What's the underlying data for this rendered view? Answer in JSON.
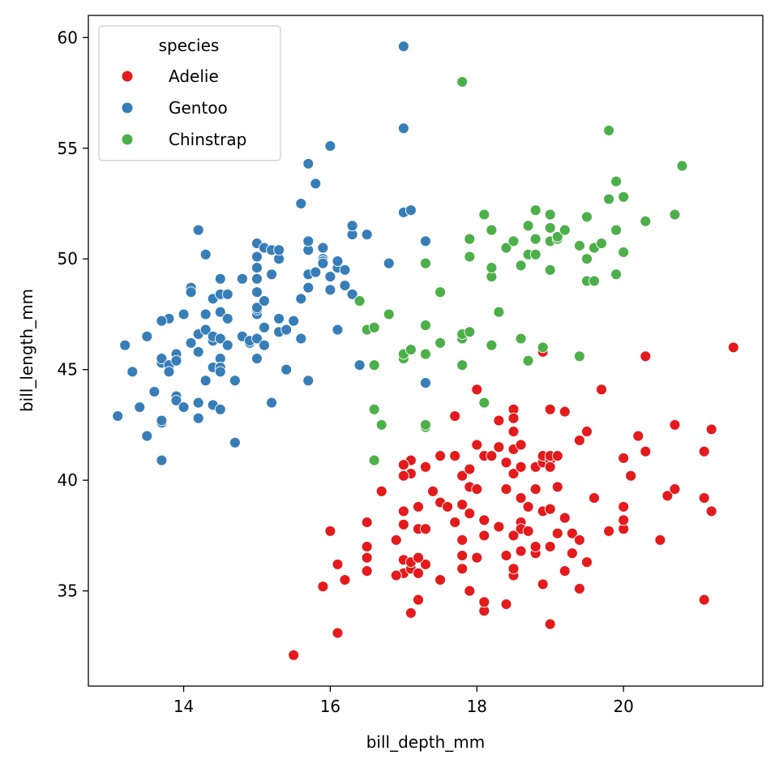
{
  "chart_data": {
    "type": "scatter",
    "xlabel": "bill_depth_mm",
    "ylabel": "bill_length_mm",
    "xlim": [
      12.7,
      21.9
    ],
    "ylim": [
      30.7,
      61.0
    ],
    "xticks": [
      14,
      16,
      18,
      20
    ],
    "yticks": [
      35,
      40,
      45,
      50,
      55,
      60
    ],
    "grid": false,
    "legend": {
      "title": "species",
      "placement": "top-left"
    },
    "series": [
      {
        "name": "Adelie",
        "color": "#e41a1c",
        "points": [
          [
            15.5,
            32.1
          ],
          [
            16.1,
            33.1
          ],
          [
            17.2,
            34.6
          ],
          [
            17.1,
            34.0
          ],
          [
            18.1,
            34.1
          ],
          [
            18.1,
            34.5
          ],
          [
            18.4,
            34.4
          ],
          [
            19.0,
            33.5
          ],
          [
            19.4,
            35.1
          ],
          [
            18.9,
            35.3
          ],
          [
            15.9,
            35.2
          ],
          [
            16.2,
            35.5
          ],
          [
            16.1,
            36.2
          ],
          [
            16.5,
            35.9
          ],
          [
            16.5,
            36.5
          ],
          [
            16.5,
            37.0
          ],
          [
            16.5,
            38.1
          ],
          [
            16.0,
            37.7
          ],
          [
            16.7,
            39.5
          ],
          [
            17.1,
            40.9
          ],
          [
            17.0,
            40.7
          ],
          [
            17.3,
            40.6
          ],
          [
            17.1,
            40.3
          ],
          [
            17.0,
            40.2
          ],
          [
            16.9,
            37.3
          ],
          [
            17.0,
            36.4
          ],
          [
            17.0,
            35.8
          ],
          [
            17.1,
            36.0
          ],
          [
            16.9,
            35.7
          ],
          [
            17.2,
            35.8
          ],
          [
            17.3,
            36.2
          ],
          [
            17.1,
            36.3
          ],
          [
            17.2,
            36.5
          ],
          [
            17.2,
            37.8
          ],
          [
            17.0,
            38.0
          ],
          [
            17.3,
            37.8
          ],
          [
            17.0,
            38.6
          ],
          [
            17.2,
            38.8
          ],
          [
            17.4,
            39.5
          ],
          [
            17.5,
            39.0
          ],
          [
            17.5,
            41.1
          ],
          [
            17.7,
            41.1
          ],
          [
            17.7,
            42.9
          ],
          [
            17.6,
            38.8
          ],
          [
            17.7,
            38.1
          ],
          [
            17.5,
            35.5
          ],
          [
            17.8,
            36.0
          ],
          [
            17.8,
            36.6
          ],
          [
            17.8,
            37.3
          ],
          [
            17.9,
            38.5
          ],
          [
            17.8,
            38.9
          ],
          [
            17.9,
            39.7
          ],
          [
            17.8,
            40.2
          ],
          [
            17.9,
            40.5
          ],
          [
            18.0,
            41.6
          ],
          [
            18.0,
            44.1
          ],
          [
            18.1,
            41.1
          ],
          [
            18.0,
            39.6
          ],
          [
            18.1,
            38.2
          ],
          [
            18.1,
            37.5
          ],
          [
            18.0,
            36.5
          ],
          [
            17.9,
            35.0
          ],
          [
            18.2,
            41.1
          ],
          [
            18.3,
            41.5
          ],
          [
            18.3,
            42.7
          ],
          [
            18.4,
            40.8
          ],
          [
            18.4,
            39.6
          ],
          [
            18.3,
            37.9
          ],
          [
            18.4,
            36.6
          ],
          [
            18.5,
            35.7
          ],
          [
            18.5,
            36.0
          ],
          [
            18.6,
            38.1
          ],
          [
            18.6,
            37.8
          ],
          [
            18.5,
            37.5
          ],
          [
            18.6,
            39.2
          ],
          [
            18.5,
            40.3
          ],
          [
            18.5,
            41.4
          ],
          [
            18.6,
            41.6
          ],
          [
            18.6,
            40.6
          ],
          [
            18.5,
            42.2
          ],
          [
            18.5,
            43.2
          ],
          [
            18.5,
            42.8
          ],
          [
            18.6,
            36.8
          ],
          [
            18.7,
            38.8
          ],
          [
            18.8,
            36.7
          ],
          [
            18.8,
            37.0
          ],
          [
            18.7,
            37.7
          ],
          [
            18.9,
            38.6
          ],
          [
            18.8,
            39.6
          ],
          [
            18.8,
            40.6
          ],
          [
            18.9,
            40.8
          ],
          [
            18.9,
            41.1
          ],
          [
            19.0,
            40.9
          ],
          [
            19.0,
            41.1
          ],
          [
            19.1,
            41.1
          ],
          [
            19.0,
            40.6
          ],
          [
            19.1,
            39.7
          ],
          [
            19.0,
            38.7
          ],
          [
            19.0,
            37.0
          ],
          [
            19.1,
            37.6
          ],
          [
            19.2,
            38.3
          ],
          [
            19.3,
            37.6
          ],
          [
            19.2,
            35.9
          ],
          [
            19.5,
            36.3
          ],
          [
            19.3,
            36.7
          ],
          [
            19.4,
            37.3
          ],
          [
            19.6,
            39.2
          ],
          [
            19.0,
            43.2
          ],
          [
            19.2,
            43.1
          ],
          [
            19.4,
            41.8
          ],
          [
            19.5,
            42.2
          ],
          [
            19.7,
            44.1
          ],
          [
            19.8,
            37.7
          ],
          [
            20.0,
            37.8
          ],
          [
            20.0,
            38.2
          ],
          [
            20.0,
            38.8
          ],
          [
            20.1,
            40.2
          ],
          [
            20.0,
            41.0
          ],
          [
            20.2,
            42.0
          ],
          [
            20.3,
            41.3
          ],
          [
            20.5,
            37.3
          ],
          [
            20.6,
            39.3
          ],
          [
            20.7,
            39.6
          ],
          [
            20.7,
            42.5
          ],
          [
            21.1,
            41.3
          ],
          [
            21.2,
            42.3
          ],
          [
            21.1,
            39.2
          ],
          [
            21.2,
            38.6
          ],
          [
            21.1,
            34.6
          ],
          [
            21.5,
            46.0
          ],
          [
            20.3,
            45.6
          ],
          [
            18.9,
            45.8
          ]
        ]
      },
      {
        "name": "Gentoo",
        "color": "#377eb8",
        "points": [
          [
            13.1,
            42.9
          ],
          [
            13.2,
            46.1
          ],
          [
            13.3,
            44.9
          ],
          [
            13.4,
            43.3
          ],
          [
            13.5,
            42.0
          ],
          [
            13.5,
            46.5
          ],
          [
            13.6,
            44.0
          ],
          [
            13.7,
            40.9
          ],
          [
            13.7,
            42.6
          ],
          [
            13.7,
            42.7
          ],
          [
            13.7,
            45.3
          ],
          [
            13.7,
            45.5
          ],
          [
            13.8,
            45.2
          ],
          [
            13.8,
            47.3
          ],
          [
            13.7,
            47.2
          ],
          [
            13.8,
            44.9
          ],
          [
            13.9,
            45.7
          ],
          [
            13.9,
            45.4
          ],
          [
            13.9,
            43.8
          ],
          [
            13.9,
            43.6
          ],
          [
            14.0,
            43.3
          ],
          [
            14.0,
            47.5
          ],
          [
            14.1,
            48.7
          ],
          [
            14.1,
            48.5
          ],
          [
            14.1,
            46.2
          ],
          [
            14.2,
            45.8
          ],
          [
            14.2,
            46.6
          ],
          [
            14.2,
            43.5
          ],
          [
            14.2,
            42.8
          ],
          [
            14.2,
            51.3
          ],
          [
            14.3,
            50.2
          ],
          [
            14.3,
            46.8
          ],
          [
            14.3,
            44.5
          ],
          [
            14.4,
            43.4
          ],
          [
            14.4,
            45.1
          ],
          [
            14.4,
            46.3
          ],
          [
            14.4,
            46.5
          ],
          [
            14.3,
            47.5
          ],
          [
            14.4,
            48.2
          ],
          [
            14.5,
            48.4
          ],
          [
            14.5,
            47.6
          ],
          [
            14.5,
            46.4
          ],
          [
            14.5,
            45.5
          ],
          [
            14.5,
            45.1
          ],
          [
            14.5,
            44.9
          ],
          [
            14.5,
            43.2
          ],
          [
            14.6,
            46.1
          ],
          [
            14.6,
            47.3
          ],
          [
            14.6,
            48.4
          ],
          [
            14.5,
            49.1
          ],
          [
            14.7,
            44.5
          ],
          [
            14.7,
            41.7
          ],
          [
            14.8,
            46.5
          ],
          [
            14.8,
            49.1
          ],
          [
            14.9,
            46.2
          ],
          [
            14.9,
            46.3
          ],
          [
            15.0,
            45.5
          ],
          [
            15.0,
            46.4
          ],
          [
            15.0,
            47.5
          ],
          [
            15.0,
            47.7
          ],
          [
            15.0,
            47.8
          ],
          [
            15.0,
            48.5
          ],
          [
            15.0,
            49.1
          ],
          [
            15.0,
            49.6
          ],
          [
            15.0,
            50.1
          ],
          [
            15.0,
            50.7
          ],
          [
            15.1,
            48.1
          ],
          [
            15.1,
            46.9
          ],
          [
            15.1,
            46.1
          ],
          [
            15.1,
            50.5
          ],
          [
            15.2,
            49.3
          ],
          [
            15.2,
            43.5
          ],
          [
            15.3,
            47.3
          ],
          [
            15.3,
            46.7
          ],
          [
            15.2,
            50.4
          ],
          [
            15.3,
            50.0
          ],
          [
            15.3,
            50.4
          ],
          [
            15.4,
            46.8
          ],
          [
            15.4,
            45.0
          ],
          [
            15.5,
            47.2
          ],
          [
            15.6,
            52.5
          ],
          [
            15.6,
            48.2
          ],
          [
            15.6,
            46.4
          ],
          [
            15.7,
            44.5
          ],
          [
            15.7,
            48.7
          ],
          [
            15.7,
            49.3
          ],
          [
            15.7,
            50.4
          ],
          [
            15.7,
            50.8
          ],
          [
            15.7,
            54.3
          ],
          [
            15.8,
            49.4
          ],
          [
            15.8,
            53.4
          ],
          [
            15.9,
            50.0
          ],
          [
            15.9,
            50.5
          ],
          [
            15.9,
            49.9
          ],
          [
            15.9,
            49.8
          ],
          [
            16.0,
            48.6
          ],
          [
            16.0,
            55.1
          ],
          [
            16.0,
            49.2
          ],
          [
            16.1,
            49.6
          ],
          [
            16.1,
            49.9
          ],
          [
            16.1,
            46.8
          ],
          [
            16.2,
            49.5
          ],
          [
            16.2,
            48.8
          ],
          [
            16.3,
            48.4
          ],
          [
            16.3,
            51.1
          ],
          [
            16.3,
            51.5
          ],
          [
            16.4,
            45.2
          ],
          [
            16.5,
            51.1
          ],
          [
            16.8,
            49.8
          ],
          [
            17.0,
            52.1
          ],
          [
            17.1,
            52.2
          ],
          [
            17.3,
            50.8
          ],
          [
            17.3,
            44.4
          ],
          [
            17.0,
            55.9
          ],
          [
            17.0,
            59.6
          ]
        ]
      },
      {
        "name": "Chinstrap",
        "color": "#4daf4a",
        "points": [
          [
            16.4,
            48.1
          ],
          [
            16.5,
            46.8
          ],
          [
            16.6,
            46.9
          ],
          [
            16.6,
            45.2
          ],
          [
            16.6,
            43.2
          ],
          [
            16.6,
            40.9
          ],
          [
            16.7,
            42.5
          ],
          [
            16.8,
            47.5
          ],
          [
            17.0,
            45.5
          ],
          [
            17.0,
            45.7
          ],
          [
            17.1,
            45.9
          ],
          [
            17.3,
            42.4
          ],
          [
            17.3,
            42.5
          ],
          [
            17.3,
            45.7
          ],
          [
            17.3,
            47.0
          ],
          [
            17.3,
            49.8
          ],
          [
            17.5,
            48.5
          ],
          [
            17.5,
            46.2
          ],
          [
            17.8,
            45.2
          ],
          [
            17.8,
            46.4
          ],
          [
            17.8,
            46.6
          ],
          [
            17.9,
            46.7
          ],
          [
            17.9,
            50.1
          ],
          [
            17.9,
            50.9
          ],
          [
            18.1,
            43.5
          ],
          [
            18.1,
            52.0
          ],
          [
            18.2,
            46.1
          ],
          [
            18.2,
            49.2
          ],
          [
            18.2,
            49.6
          ],
          [
            18.2,
            51.3
          ],
          [
            18.3,
            47.6
          ],
          [
            18.4,
            50.5
          ],
          [
            18.5,
            50.8
          ],
          [
            18.6,
            49.7
          ],
          [
            18.6,
            46.4
          ],
          [
            18.7,
            45.4
          ],
          [
            18.7,
            50.2
          ],
          [
            18.7,
            51.5
          ],
          [
            18.8,
            50.9
          ],
          [
            18.8,
            52.2
          ],
          [
            18.8,
            50.2
          ],
          [
            18.9,
            46.0
          ],
          [
            19.0,
            49.5
          ],
          [
            19.0,
            50.8
          ],
          [
            19.0,
            51.4
          ],
          [
            19.0,
            52.0
          ],
          [
            19.1,
            50.9
          ],
          [
            19.1,
            51.0
          ],
          [
            19.2,
            51.3
          ],
          [
            19.4,
            45.6
          ],
          [
            19.4,
            50.6
          ],
          [
            19.5,
            49.0
          ],
          [
            19.5,
            50.0
          ],
          [
            19.5,
            51.9
          ],
          [
            19.6,
            49.0
          ],
          [
            19.6,
            50.5
          ],
          [
            19.7,
            50.7
          ],
          [
            19.8,
            52.7
          ],
          [
            19.8,
            55.8
          ],
          [
            19.9,
            49.3
          ],
          [
            19.9,
            51.3
          ],
          [
            19.9,
            53.5
          ],
          [
            20.0,
            50.3
          ],
          [
            20.0,
            52.8
          ],
          [
            20.3,
            51.7
          ],
          [
            20.7,
            52.0
          ],
          [
            20.8,
            54.2
          ],
          [
            17.8,
            58.0
          ]
        ]
      }
    ]
  }
}
